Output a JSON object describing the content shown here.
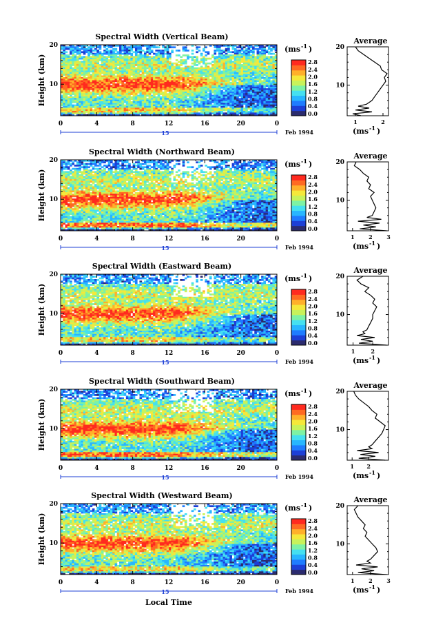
{
  "figure": {
    "xlabel": "Local Time",
    "ylabel": "Height (km)",
    "day_label": "15",
    "month_label": "Feb 1994",
    "colorbar_unit": "(ms",
    "colorbar_exp": "-1",
    "colorbar_unit_close": ")",
    "avg_title": "Average",
    "avg_xlabel": "(ms",
    "avg_xlabel_exp": "-1",
    "avg_xlabel_close": ")"
  },
  "chart_data": [
    {
      "type": "heatmap",
      "title": "Spectral Width (Vertical Beam)",
      "xlim": [
        0,
        24
      ],
      "ylim": [
        2,
        20
      ],
      "xticks": [
        "0",
        "4",
        "8",
        "12",
        "16",
        "20",
        "0"
      ],
      "yticks": [
        "10",
        "20"
      ],
      "colorbar_ticks": [
        "0.0",
        "0.4",
        "0.8",
        "1.2",
        "1.6",
        "2.0",
        "2.4",
        "2.8"
      ],
      "average_profile": {
        "xticks": [
          "1",
          "2"
        ],
        "xlim": [
          0.7,
          2.2
        ],
        "height": [
          2,
          2.5,
          3,
          3.5,
          4,
          4.5,
          5,
          5.5,
          6,
          7,
          8,
          9,
          10,
          11,
          12,
          13,
          14,
          15,
          16,
          17,
          18,
          19,
          20
        ],
        "width": [
          1.2,
          0.9,
          1.6,
          1.0,
          1.5,
          1.1,
          1.4,
          1.5,
          1.6,
          1.7,
          1.8,
          1.9,
          2.0,
          2.1,
          2.05,
          2.15,
          1.95,
          1.9,
          1.7,
          1.5,
          1.3,
          1.1,
          1.0
        ]
      },
      "colors": {
        "low": "#2b2b6e",
        "high": "#ff2a1f"
      }
    },
    {
      "type": "heatmap",
      "title": "Spectral Width (Northward Beam)",
      "xlim": [
        0,
        24
      ],
      "ylim": [
        2,
        20
      ],
      "xticks": [
        "0",
        "4",
        "8",
        "12",
        "16",
        "20",
        "0"
      ],
      "yticks": [
        "10",
        "20"
      ],
      "colorbar_ticks": [
        "0.0",
        "0.4",
        "0.8",
        "1.2",
        "1.6",
        "2.0",
        "2.4",
        "2.8"
      ],
      "average_profile": {
        "xticks": [
          "1",
          "2",
          "3"
        ],
        "xlim": [
          0.7,
          3.0
        ],
        "height": [
          2,
          2.5,
          3,
          3.5,
          4,
          4.5,
          5,
          5.5,
          6,
          7,
          8,
          9,
          10,
          11,
          12,
          13,
          14,
          15,
          16,
          17,
          18,
          19,
          20
        ],
        "width": [
          2.9,
          1.4,
          2.3,
          1.6,
          2.5,
          1.3,
          2.6,
          1.8,
          2.1,
          2.2,
          2.3,
          2.2,
          2.1,
          2.0,
          2.2,
          1.9,
          2.0,
          1.8,
          1.9,
          1.6,
          1.4,
          1.1,
          1.2
        ]
      },
      "colors": {
        "low": "#2b2b6e",
        "high": "#ff2a1f"
      }
    },
    {
      "type": "heatmap",
      "title": "Spectral Width (Eastward Beam)",
      "xlim": [
        0,
        24
      ],
      "ylim": [
        2,
        20
      ],
      "xticks": [
        "0",
        "4",
        "8",
        "12",
        "16",
        "20",
        "0"
      ],
      "yticks": [
        "10",
        "20"
      ],
      "colorbar_ticks": [
        "0.0",
        "0.4",
        "0.8",
        "1.2",
        "1.6",
        "2.0",
        "2.4",
        "2.8"
      ],
      "average_profile": {
        "xticks": [
          "1",
          "2"
        ],
        "xlim": [
          0.7,
          2.8
        ],
        "height": [
          2,
          2.5,
          3,
          3.5,
          4,
          4.5,
          5,
          5.5,
          6,
          7,
          8,
          9,
          10,
          11,
          12,
          13,
          14,
          15,
          16,
          17,
          18,
          19,
          20
        ],
        "width": [
          2.7,
          1.3,
          2.0,
          1.4,
          2.1,
          1.2,
          1.6,
          1.5,
          1.7,
          1.8,
          1.9,
          2.0,
          2.0,
          2.1,
          2.2,
          2.0,
          2.1,
          1.9,
          1.6,
          1.8,
          1.4,
          1.2,
          1.5
        ]
      },
      "colors": {
        "low": "#2b2b6e",
        "high": "#ff2a1f"
      }
    },
    {
      "type": "heatmap",
      "title": "Spectral Width (Southward Beam)",
      "xlim": [
        0,
        24
      ],
      "ylim": [
        2,
        20
      ],
      "xticks": [
        "0",
        "4",
        "8",
        "12",
        "16",
        "20",
        "0"
      ],
      "yticks": [
        "10",
        "20"
      ],
      "colorbar_ticks": [
        "0.0",
        "0.4",
        "0.8",
        "1.2",
        "1.6",
        "2.0",
        "2.4",
        "2.8"
      ],
      "average_profile": {
        "xticks": [
          "1",
          "2"
        ],
        "xlim": [
          0.7,
          3.2
        ],
        "height": [
          2,
          2.5,
          3,
          3.5,
          4,
          4.5,
          5,
          5.5,
          6,
          7,
          8,
          9,
          10,
          11,
          12,
          13,
          14,
          15,
          16,
          17,
          18,
          19,
          20
        ],
        "width": [
          3.0,
          1.4,
          2.4,
          1.5,
          2.6,
          1.3,
          2.2,
          2.0,
          2.2,
          2.4,
          2.6,
          2.8,
          2.9,
          3.0,
          2.7,
          2.4,
          2.5,
          2.2,
          2.0,
          1.7,
          1.4,
          1.2,
          1.1
        ]
      },
      "colors": {
        "low": "#2b2b6e",
        "high": "#ff2a1f"
      }
    },
    {
      "type": "heatmap",
      "title": "Spectral Width (Westward Beam)",
      "xlim": [
        0,
        24
      ],
      "ylim": [
        2,
        20
      ],
      "xticks": [
        "0",
        "4",
        "8",
        "12",
        "16",
        "20",
        "0"
      ],
      "yticks": [
        "10",
        "20"
      ],
      "colorbar_ticks": [
        "0.0",
        "0.4",
        "0.8",
        "1.2",
        "1.6",
        "2.0",
        "2.4",
        "2.8"
      ],
      "average_profile": {
        "xticks": [
          "1",
          "2",
          "3"
        ],
        "xlim": [
          0.7,
          3.0
        ],
        "height": [
          2,
          2.5,
          3,
          3.5,
          4,
          4.5,
          5,
          5.5,
          6,
          7,
          8,
          9,
          10,
          11,
          12,
          13,
          14,
          15,
          16,
          17,
          18,
          19,
          20
        ],
        "width": [
          2.9,
          1.3,
          2.2,
          1.5,
          2.4,
          1.2,
          2.0,
          1.8,
          2.0,
          2.2,
          2.4,
          2.3,
          2.1,
          1.9,
          1.7,
          1.8,
          1.6,
          1.7,
          1.5,
          1.3,
          1.2,
          1.1,
          1.3
        ]
      },
      "colors": {
        "low": "#2b2b6e",
        "high": "#ff2a1f"
      }
    }
  ]
}
